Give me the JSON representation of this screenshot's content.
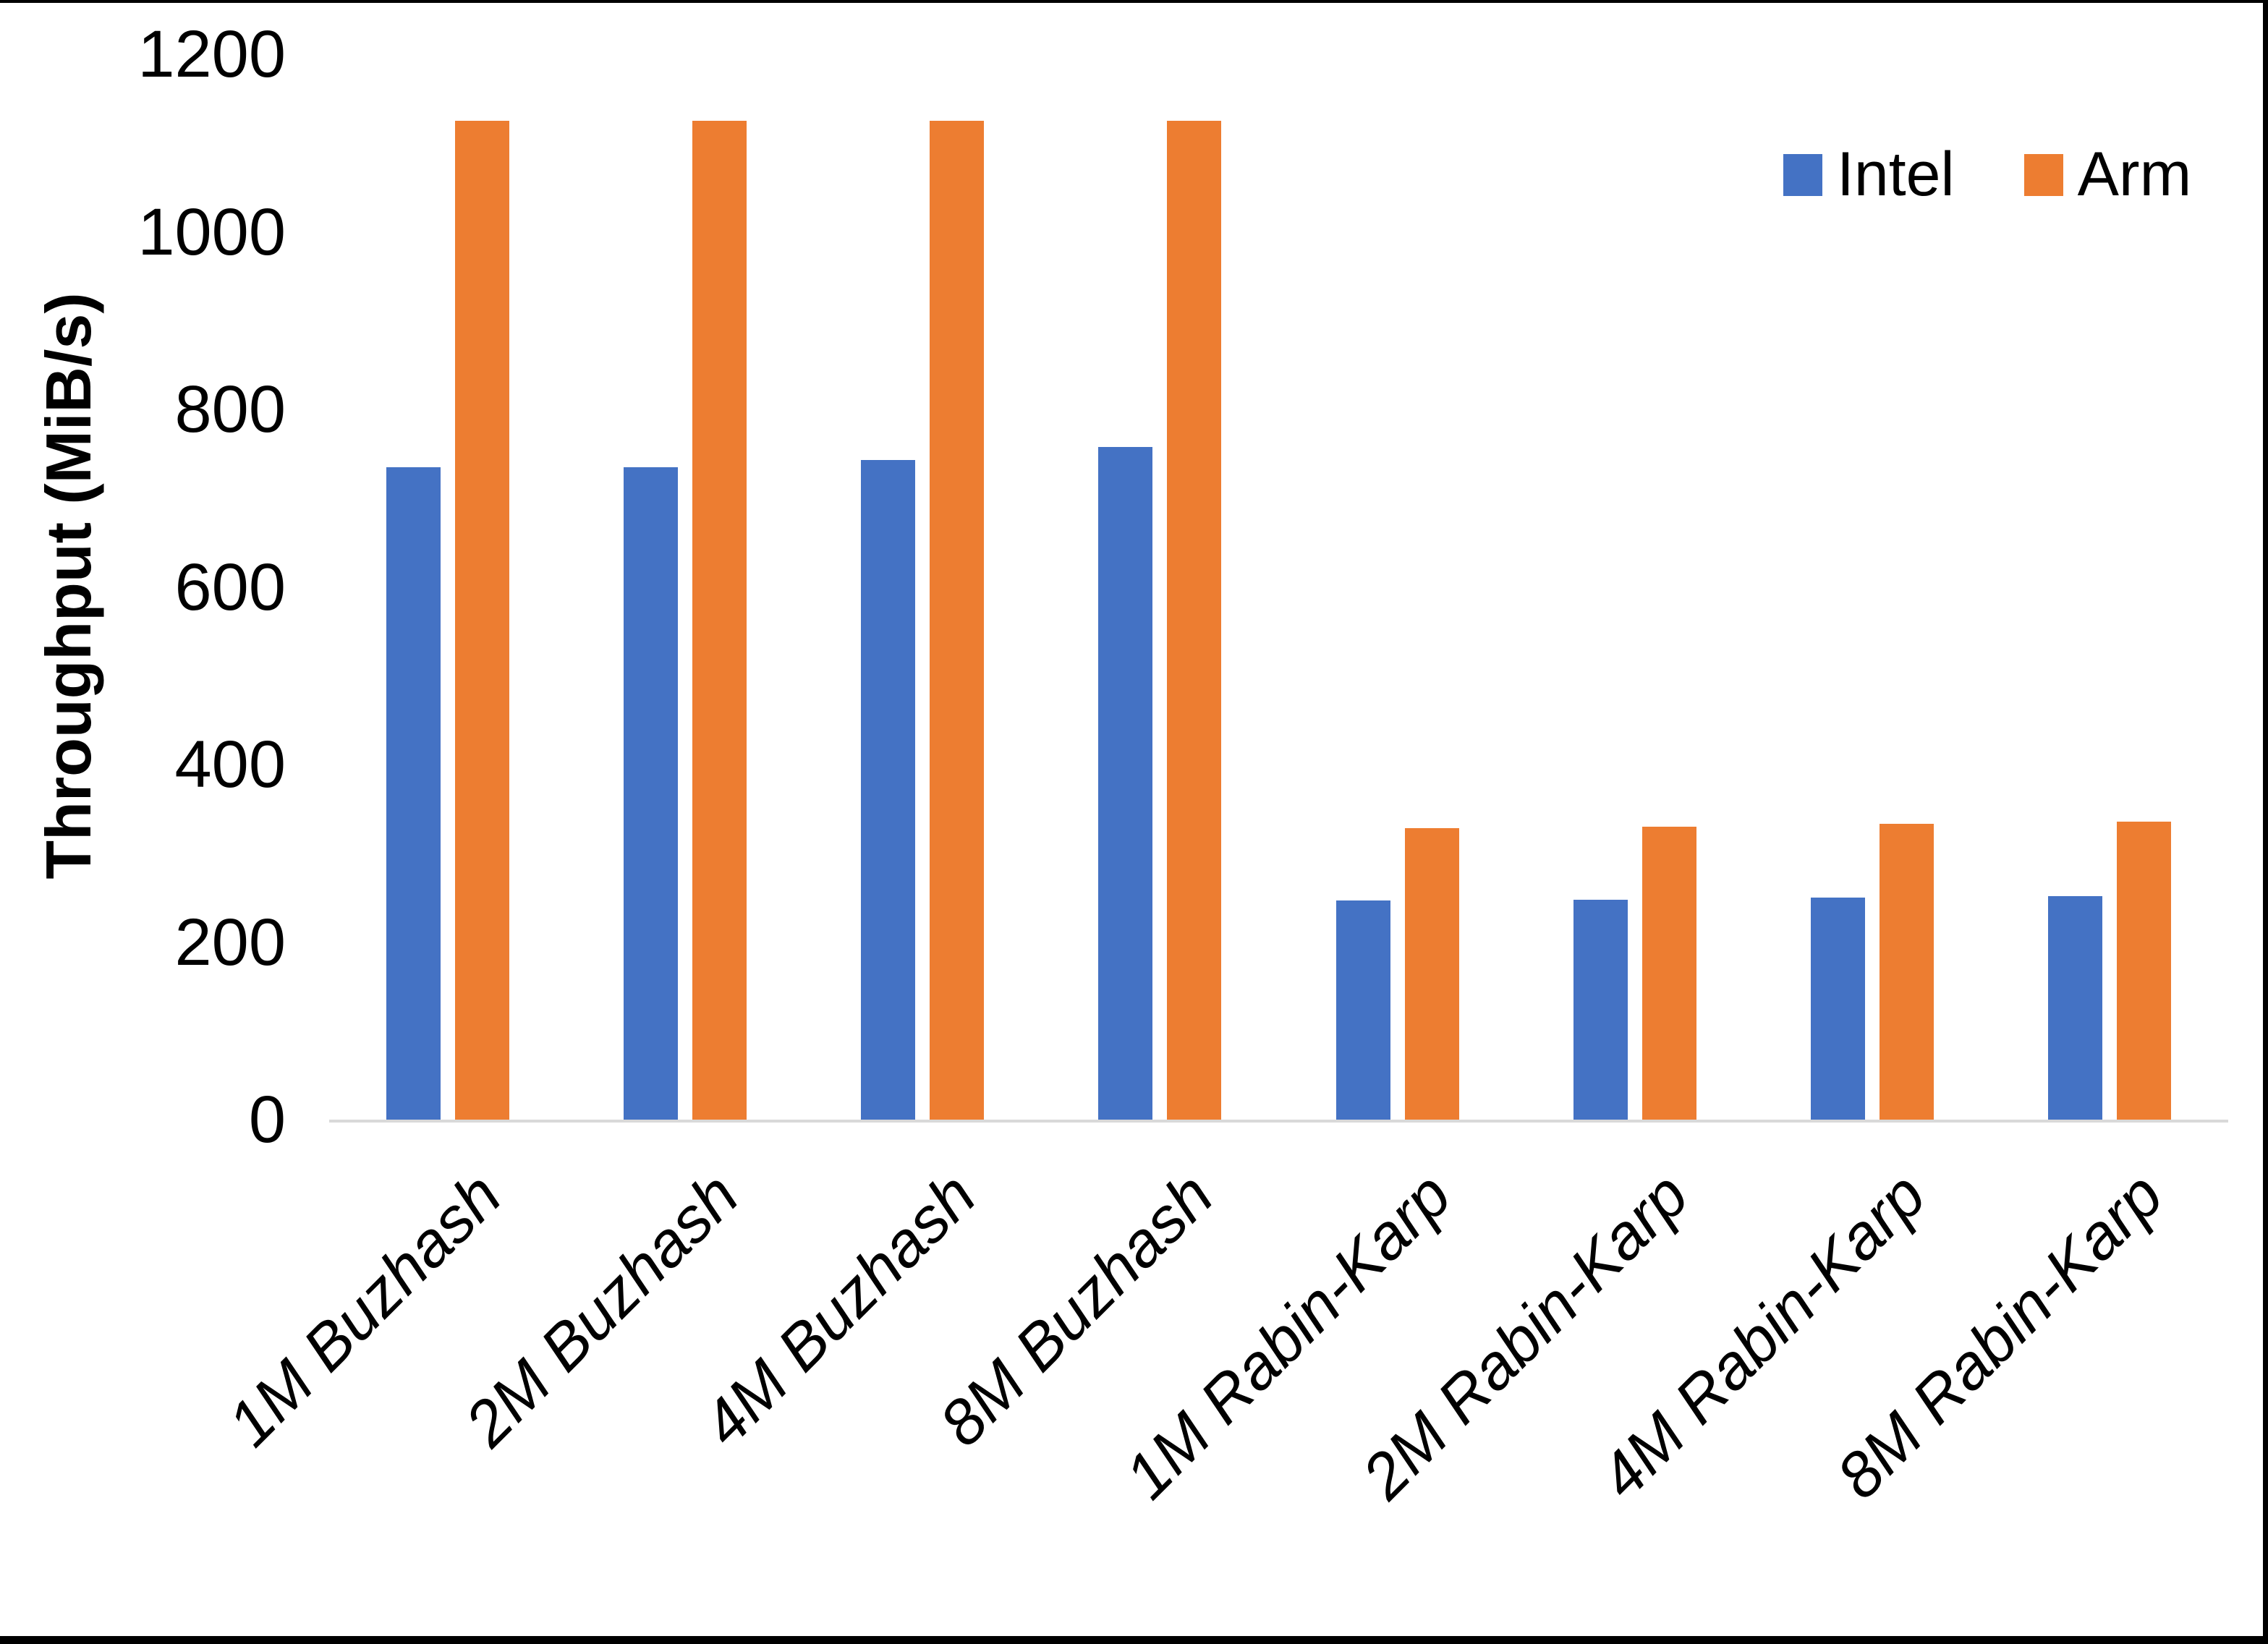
{
  "chart_data": {
    "type": "bar",
    "title": "",
    "xlabel": "",
    "ylabel": "Throughput (MiB/s)",
    "categories": [
      "1M Buzhash",
      "2M Buzhash",
      "4M Buzhash",
      "8M Buzhash",
      "1M Rabin-Karp",
      "2M Rabin-Karp",
      "4M Rabin-Karp",
      "8M Rabin-Karp"
    ],
    "series": [
      {
        "name": "Intel",
        "color": "#4472C4",
        "values": [
          735,
          735,
          743,
          758,
          247,
          248,
          250,
          252
        ]
      },
      {
        "name": "Arm",
        "color": "#ED7D31",
        "values": [
          1125,
          1125,
          1125,
          1125,
          328,
          330,
          333,
          336
        ]
      }
    ],
    "ylim": [
      0,
      1200
    ],
    "yticks": [
      0,
      200,
      400,
      600,
      800,
      1000,
      1200
    ],
    "grid": false,
    "legend_position": "top-right",
    "axis_line_color": "#D9D9D9",
    "text_color": "#000000"
  }
}
